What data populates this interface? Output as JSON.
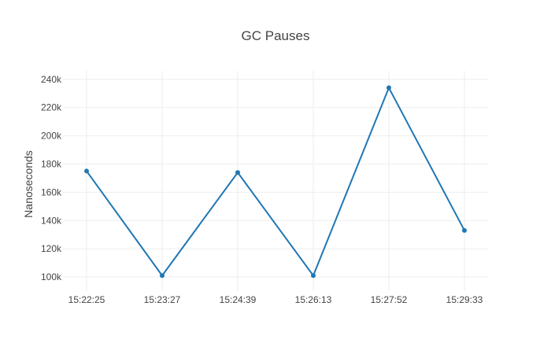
{
  "chart_data": {
    "type": "line",
    "title": "GC Pauses",
    "xlabel": "",
    "ylabel": "Nanoseconds",
    "categories": [
      "15:22:25",
      "15:23:27",
      "15:24:39",
      "15:26:13",
      "15:27:52",
      "15:29:33"
    ],
    "series": [
      {
        "values": [
          175000,
          101000,
          174000,
          101000,
          234000,
          133000
        ]
      }
    ],
    "ylim": [
      90000,
      246000
    ],
    "yticks": [
      100000,
      120000,
      140000,
      160000,
      180000,
      200000,
      220000,
      240000
    ],
    "ytick_labels": [
      "100k",
      "120k",
      "140k",
      "160k",
      "180k",
      "200k",
      "220k",
      "240k"
    ],
    "grid": true,
    "legend": "none",
    "colors": {
      "line": "#1f77b4",
      "grid": "#eeeeee",
      "text": "#444444"
    }
  }
}
